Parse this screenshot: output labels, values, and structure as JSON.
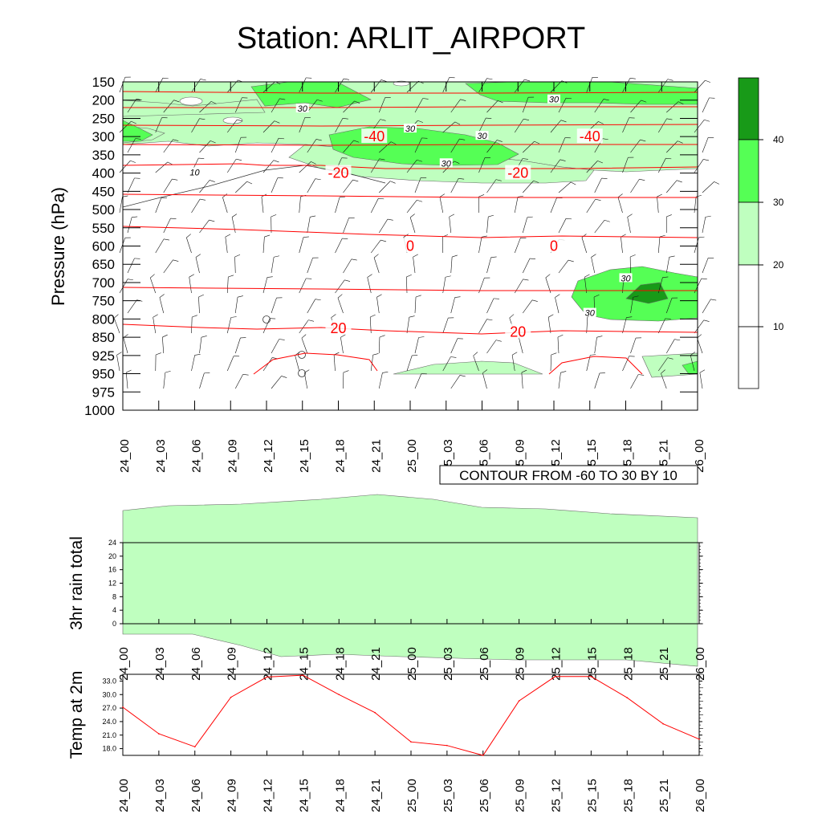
{
  "title": "Station: ARLIT_AIRPORT",
  "time_labels": [
    "24_00",
    "24_03",
    "24_06",
    "24_09",
    "24_12",
    "24_15",
    "24_18",
    "24_21",
    "25_00",
    "25_03",
    "25_06",
    "25_09",
    "25_12",
    "25_15",
    "25_18",
    "25_21",
    "26_00"
  ],
  "colors": {
    "shade_20_30": "#bfffbf",
    "shade_30_40": "#55ff55",
    "shade_40_plus": "#189a18",
    "temp_contour": "#ff0000",
    "temp_line": "#ff0000",
    "axis": "#000000"
  },
  "chart_data": [
    {
      "type": "heatmap",
      "title": "Station: ARLIT_AIRPORT",
      "xlabel": "",
      "ylabel": "Pressure (hPa)",
      "y_ticks": [
        "150",
        "200",
        "250",
        "300",
        "350",
        "400",
        "450",
        "500",
        "550",
        "600",
        "650",
        "700",
        "750",
        "800",
        "850",
        "925",
        "950",
        "975",
        "1000"
      ],
      "footer_label": "CONTOUR FROM -60 TO 30 BY 10",
      "legend": {
        "placement": "right",
        "bins": [
          "10",
          "20",
          "30",
          "40"
        ]
      },
      "temperature_contour_labels": [
        {
          "value": "-40",
          "x": "24_21",
          "level": "300"
        },
        {
          "value": "-40",
          "x": "25_15",
          "level": "300"
        },
        {
          "value": "-20",
          "x": "24_18",
          "level": "400"
        },
        {
          "value": "-20",
          "x": "25_09",
          "level": "400"
        },
        {
          "value": "0",
          "x": "25_00",
          "level": "600"
        },
        {
          "value": "0",
          "x": "25_12",
          "level": "600"
        },
        {
          "value": "20",
          "x": "24_18",
          "level": "825"
        },
        {
          "value": "20",
          "x": "25_09",
          "level": "835"
        }
      ],
      "speed_contour_labels": [
        {
          "value": "30",
          "x": "24_15",
          "level": "225"
        },
        {
          "value": "30",
          "x": "24_24",
          "level": "280"
        },
        {
          "value": "30",
          "x": "25_06",
          "level": "300"
        },
        {
          "value": "30",
          "x": "25_03",
          "level": "375"
        },
        {
          "value": "30",
          "x": "25_12",
          "level": "200"
        },
        {
          "value": "30",
          "x": "25_18",
          "level": "690"
        },
        {
          "value": "30",
          "x": "25_15",
          "level": "785"
        },
        {
          "value": "10",
          "x": "24_06",
          "level": "400"
        }
      ]
    },
    {
      "type": "line",
      "ylabel": "3hr rain total",
      "y_ticks": [
        "0",
        "4",
        "8",
        "12",
        "16",
        "20",
        "24"
      ],
      "ylim": [
        0,
        24
      ],
      "values": []
    },
    {
      "type": "line",
      "ylabel": "Temp at 2m",
      "y_ticks": [
        "18.0",
        "21.0",
        "24.0",
        "27.0",
        "30.0",
        "33.0"
      ],
      "ylim": [
        16.5,
        34.5
      ],
      "values": [
        27.2,
        21.3,
        18.4,
        29.4,
        33.9,
        34.3,
        30.0,
        26.0,
        19.5,
        18.7,
        16.5,
        28.6,
        34.0,
        34.0,
        29.3,
        23.5,
        20.1
      ]
    }
  ]
}
